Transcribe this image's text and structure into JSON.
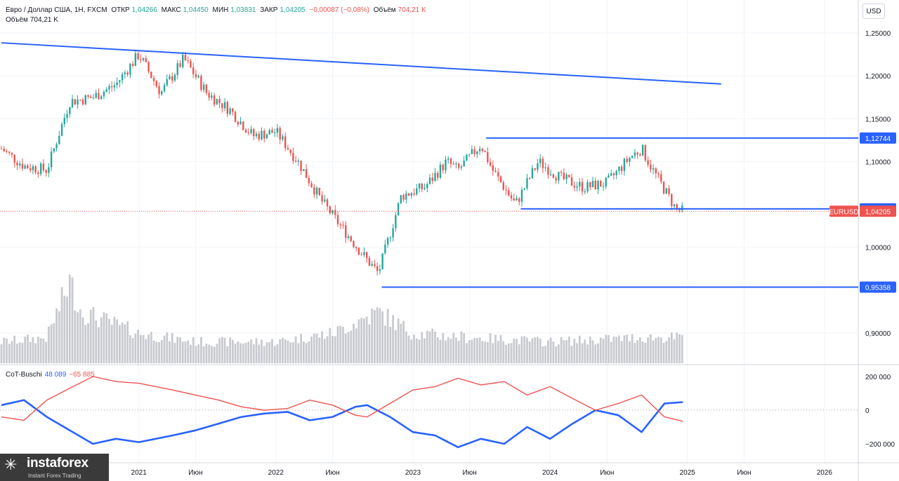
{
  "header": {
    "symbol": "Евро / Доллар США, 1Н, FXCM",
    "open_label": "ОТКР",
    "open": "1,04266",
    "high_label": "МАКС",
    "high": "1,04450",
    "low_label": "МИН",
    "low": "1,03831",
    "close_label": "ЗАКР",
    "close": "1,04205",
    "change": "−0,00087 (−0,08%)",
    "volume_label": "Объём",
    "volume": "704,21 K",
    "volume_line_label": "Объём",
    "volume_line": "704,21 K"
  },
  "currency_button": "USD",
  "cot": {
    "name": "CoT-Buschi",
    "blue_value": "48 089",
    "red_value": "−65 885"
  },
  "colors": {
    "up": "#26a69a",
    "down": "#ef5350",
    "level": "#2962ff",
    "cot_blue": "#2962ff",
    "cot_red": "#ef5350"
  },
  "logo": {
    "name": "instaforex",
    "tagline": "Instant Forex Trading",
    "icon": "star-icon"
  },
  "chart_data": {
    "type": "candlestick",
    "instrument": "EURUSD",
    "x_ticks": [
      "2021",
      "Июн",
      "2022",
      "Июн",
      "2023",
      "Июн",
      "2024",
      "Июн",
      "2025",
      "Июн",
      "2026"
    ],
    "y_ticks": [
      "1,25000",
      "1,20000",
      "1,15000",
      "1,10000",
      "1,00000",
      "0,90000"
    ],
    "price_range": [
      0.865,
      1.265
    ],
    "levels": [
      {
        "value": 1.12744,
        "label": "1,12744"
      },
      {
        "value": 1.04482,
        "label": "1,04482"
      },
      {
        "value": 0.95358,
        "label": "0,95358"
      }
    ],
    "last_price": {
      "value": 1.04205,
      "label": "1,04205",
      "name": "EURUSD"
    },
    "trendline": {
      "start": {
        "date": "2020-01-01",
        "price": 1.2385
      },
      "end": {
        "date": "2025-04-01",
        "price": 1.1905
      }
    },
    "price_path": [
      [
        "2020-01-01",
        1.115
      ],
      [
        "2020-03-01",
        1.095
      ],
      [
        "2020-05-01",
        1.09
      ],
      [
        "2020-07-01",
        1.17
      ],
      [
        "2020-09-01",
        1.175
      ],
      [
        "2020-11-01",
        1.19
      ],
      [
        "2021-01-01",
        1.225
      ],
      [
        "2021-03-01",
        1.18
      ],
      [
        "2021-05-01",
        1.22
      ],
      [
        "2021-07-01",
        1.18
      ],
      [
        "2021-09-01",
        1.16
      ],
      [
        "2021-11-01",
        1.13
      ],
      [
        "2022-01-01",
        1.135
      ],
      [
        "2022-03-01",
        1.1
      ],
      [
        "2022-05-01",
        1.055
      ],
      [
        "2022-07-01",
        1.02
      ],
      [
        "2022-09-01",
        0.985
      ],
      [
        "2022-10-01",
        0.97
      ],
      [
        "2022-12-01",
        1.06
      ],
      [
        "2023-02-01",
        1.07
      ],
      [
        "2023-04-01",
        1.1
      ],
      [
        "2023-05-01",
        1.09
      ],
      [
        "2023-07-01",
        1.12
      ],
      [
        "2023-08-01",
        1.09
      ],
      [
        "2023-10-01",
        1.05
      ],
      [
        "2023-12-01",
        1.1
      ],
      [
        "2024-02-01",
        1.08
      ],
      [
        "2024-04-01",
        1.07
      ],
      [
        "2024-06-01",
        1.075
      ],
      [
        "2024-08-01",
        1.105
      ],
      [
        "2024-09-01",
        1.115
      ],
      [
        "2024-10-01",
        1.09
      ],
      [
        "2024-12-01",
        1.045
      ],
      [
        "2024-12-20",
        1.042
      ]
    ],
    "volume_path": [
      [
        "2020-01-01",
        0.25
      ],
      [
        "2020-05-01",
        0.3
      ],
      [
        "2020-07-01",
        0.95
      ],
      [
        "2020-08-01",
        0.6
      ],
      [
        "2021-01-01",
        0.35
      ],
      [
        "2021-06-01",
        0.25
      ],
      [
        "2022-01-01",
        0.25
      ],
      [
        "2022-06-01",
        0.35
      ],
      [
        "2022-10-01",
        0.6
      ],
      [
        "2023-01-01",
        0.35
      ],
      [
        "2023-06-01",
        0.3
      ],
      [
        "2024-01-01",
        0.25
      ],
      [
        "2024-09-01",
        0.3
      ],
      [
        "2024-12-20",
        0.3
      ]
    ],
    "cot": {
      "y_ticks": [
        "200 000",
        "0",
        "−200 000"
      ],
      "range": [
        -250000,
        250000
      ],
      "series": [
        {
          "name": "blue",
          "color": "#2962ff",
          "points": [
            [
              "2020-01-01",
              30000
            ],
            [
              "2020-03-01",
              60000
            ],
            [
              "2020-05-01",
              -40000
            ],
            [
              "2020-07-01",
              -120000
            ],
            [
              "2020-09-01",
              -200000
            ],
            [
              "2020-11-01",
              -170000
            ],
            [
              "2021-01-01",
              -190000
            ],
            [
              "2021-04-01",
              -150000
            ],
            [
              "2021-06-01",
              -120000
            ],
            [
              "2021-08-01",
              -80000
            ],
            [
              "2021-10-01",
              -40000
            ],
            [
              "2021-12-01",
              -20000
            ],
            [
              "2022-02-01",
              -10000
            ],
            [
              "2022-04-01",
              -60000
            ],
            [
              "2022-06-01",
              -40000
            ],
            [
              "2022-08-01",
              20000
            ],
            [
              "2022-09-01",
              30000
            ],
            [
              "2022-11-01",
              -40000
            ],
            [
              "2023-01-01",
              -130000
            ],
            [
              "2023-03-01",
              -150000
            ],
            [
              "2023-05-01",
              -220000
            ],
            [
              "2023-07-01",
              -170000
            ],
            [
              "2023-09-01",
              -200000
            ],
            [
              "2023-11-01",
              -100000
            ],
            [
              "2024-01-01",
              -170000
            ],
            [
              "2024-03-01",
              -80000
            ],
            [
              "2024-05-01",
              0
            ],
            [
              "2024-07-01",
              -30000
            ],
            [
              "2024-09-01",
              -130000
            ],
            [
              "2024-11-01",
              40000
            ],
            [
              "2024-12-20",
              48089
            ]
          ]
        },
        {
          "name": "red",
          "color": "#ef5350",
          "points": [
            [
              "2020-01-01",
              -40000
            ],
            [
              "2020-03-01",
              -60000
            ],
            [
              "2020-05-01",
              60000
            ],
            [
              "2020-07-01",
              130000
            ],
            [
              "2020-09-01",
              200000
            ],
            [
              "2020-11-01",
              170000
            ],
            [
              "2021-01-01",
              160000
            ],
            [
              "2021-04-01",
              120000
            ],
            [
              "2021-06-01",
              90000
            ],
            [
              "2021-08-01",
              60000
            ],
            [
              "2021-10-01",
              20000
            ],
            [
              "2021-12-01",
              0
            ],
            [
              "2022-02-01",
              10000
            ],
            [
              "2022-04-01",
              60000
            ],
            [
              "2022-06-01",
              30000
            ],
            [
              "2022-08-01",
              -30000
            ],
            [
              "2022-09-01",
              -40000
            ],
            [
              "2022-11-01",
              40000
            ],
            [
              "2023-01-01",
              120000
            ],
            [
              "2023-03-01",
              140000
            ],
            [
              "2023-05-01",
              190000
            ],
            [
              "2023-07-01",
              150000
            ],
            [
              "2023-09-01",
              170000
            ],
            [
              "2023-11-01",
              90000
            ],
            [
              "2024-01-01",
              140000
            ],
            [
              "2024-03-01",
              70000
            ],
            [
              "2024-05-01",
              0
            ],
            [
              "2024-07-01",
              40000
            ],
            [
              "2024-09-01",
              90000
            ],
            [
              "2024-11-01",
              -40000
            ],
            [
              "2024-12-20",
              -65885
            ]
          ]
        }
      ]
    }
  }
}
